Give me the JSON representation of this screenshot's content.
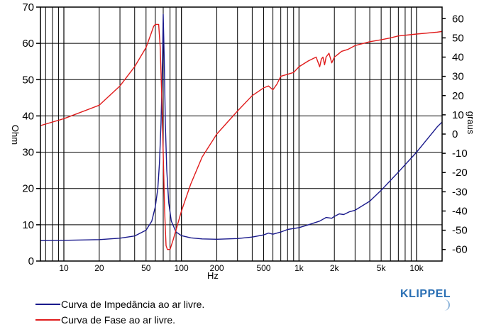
{
  "chart_data": {
    "type": "line",
    "xlabel": "Hz",
    "ylabel_left": "Ohm",
    "ylabel_right": "graus",
    "x_scale": "log",
    "xlim": [
      6,
      400000
    ],
    "xlim_note": "",
    "x_ticks": [
      {
        "v": 10,
        "label": "10"
      },
      {
        "v": 20,
        "label": "20"
      },
      {
        "v": 50,
        "label": "50"
      },
      {
        "v": 100,
        "label": "100"
      },
      {
        "v": 200,
        "label": "200"
      },
      {
        "v": 500,
        "label": "500"
      },
      {
        "v": 1000,
        "label": "1k"
      },
      {
        "v": 2000,
        "label": "2k"
      },
      {
        "v": 5000,
        "label": "5k"
      },
      {
        "v": 10000,
        "label": "10k"
      }
    ],
    "ylim_left": [
      0,
      70
    ],
    "y_ticks_left": [
      0,
      10,
      20,
      30,
      40,
      50,
      60,
      70
    ],
    "ylim_right": [
      -66,
      66
    ],
    "y_ticks_right": [
      60,
      50,
      40,
      30,
      20,
      10,
      0,
      -10,
      -20,
      -30,
      -40,
      -50,
      -60
    ],
    "grid": true,
    "series": [
      {
        "name": "Curva de Impedância ao ar livre.",
        "axis": "left",
        "color": "#1a1a8c",
        "points": [
          [
            6,
            5.6
          ],
          [
            10,
            5.7
          ],
          [
            20,
            5.9
          ],
          [
            30,
            6.3
          ],
          [
            40,
            6.9
          ],
          [
            50,
            8.5
          ],
          [
            56,
            11
          ],
          [
            60,
            15
          ],
          [
            63,
            20
          ],
          [
            65,
            27
          ],
          [
            67,
            38
          ],
          [
            69,
            55
          ],
          [
            70,
            68
          ],
          [
            71.5,
            55
          ],
          [
            73,
            38
          ],
          [
            75,
            25
          ],
          [
            78,
            16
          ],
          [
            82,
            11
          ],
          [
            90,
            8
          ],
          [
            100,
            7
          ],
          [
            120,
            6.4
          ],
          [
            150,
            6.1
          ],
          [
            200,
            6.0
          ],
          [
            300,
            6.2
          ],
          [
            400,
            6.6
          ],
          [
            500,
            7.2
          ],
          [
            550,
            7.7
          ],
          [
            600,
            7.4
          ],
          [
            700,
            8.0
          ],
          [
            800,
            8.7
          ],
          [
            1000,
            9.2
          ],
          [
            1200,
            10.0
          ],
          [
            1500,
            11.0
          ],
          [
            1700,
            12.0
          ],
          [
            1900,
            11.8
          ],
          [
            2000,
            12.3
          ],
          [
            2200,
            13.0
          ],
          [
            2400,
            12.8
          ],
          [
            2700,
            13.6
          ],
          [
            3000,
            14.0
          ],
          [
            4000,
            16.5
          ],
          [
            5000,
            19.5
          ],
          [
            7000,
            24.5
          ],
          [
            10000,
            30.0
          ],
          [
            15000,
            37.0
          ],
          [
            20000,
            41.0
          ]
        ]
      },
      {
        "name": "Curva de Fase ao ar livre.",
        "axis": "right",
        "color": "#e01c1c",
        "points": [
          [
            6,
            4
          ],
          [
            10,
            8
          ],
          [
            20,
            15
          ],
          [
            30,
            25
          ],
          [
            40,
            35
          ],
          [
            50,
            45
          ],
          [
            55,
            52
          ],
          [
            58,
            56
          ],
          [
            60,
            57
          ],
          [
            64,
            57
          ],
          [
            66,
            45
          ],
          [
            68,
            20
          ],
          [
            70,
            -10
          ],
          [
            72,
            -40
          ],
          [
            74,
            -58
          ],
          [
            76,
            -60
          ],
          [
            80,
            -60
          ],
          [
            85,
            -55
          ],
          [
            100,
            -40
          ],
          [
            120,
            -26
          ],
          [
            150,
            -12
          ],
          [
            200,
            0
          ],
          [
            300,
            12
          ],
          [
            400,
            20
          ],
          [
            500,
            24
          ],
          [
            550,
            25
          ],
          [
            600,
            23
          ],
          [
            650,
            26
          ],
          [
            700,
            30
          ],
          [
            900,
            32
          ],
          [
            1000,
            35
          ],
          [
            1200,
            38
          ],
          [
            1400,
            40
          ],
          [
            1500,
            35
          ],
          [
            1550,
            39
          ],
          [
            1600,
            40
          ],
          [
            1650,
            36
          ],
          [
            1700,
            40
          ],
          [
            1800,
            42
          ],
          [
            1900,
            37
          ],
          [
            2000,
            40
          ],
          [
            2100,
            41
          ],
          [
            2300,
            43
          ],
          [
            2600,
            44
          ],
          [
            3000,
            46
          ],
          [
            4000,
            48
          ],
          [
            5000,
            49
          ],
          [
            6000,
            50
          ],
          [
            7000,
            51
          ],
          [
            10000,
            52
          ],
          [
            15000,
            53
          ],
          [
            20000,
            54
          ]
        ]
      }
    ]
  },
  "legend": {
    "impedance_label": "Curva de Impedância ao ar livre.",
    "phase_label": "Curva de Fase ao ar livre."
  },
  "brand": "KLIPPEL",
  "colors": {
    "impedance": "#1a1a8c",
    "phase": "#e01c1c",
    "grid": "#000000",
    "brand": "#2a6fb4"
  }
}
